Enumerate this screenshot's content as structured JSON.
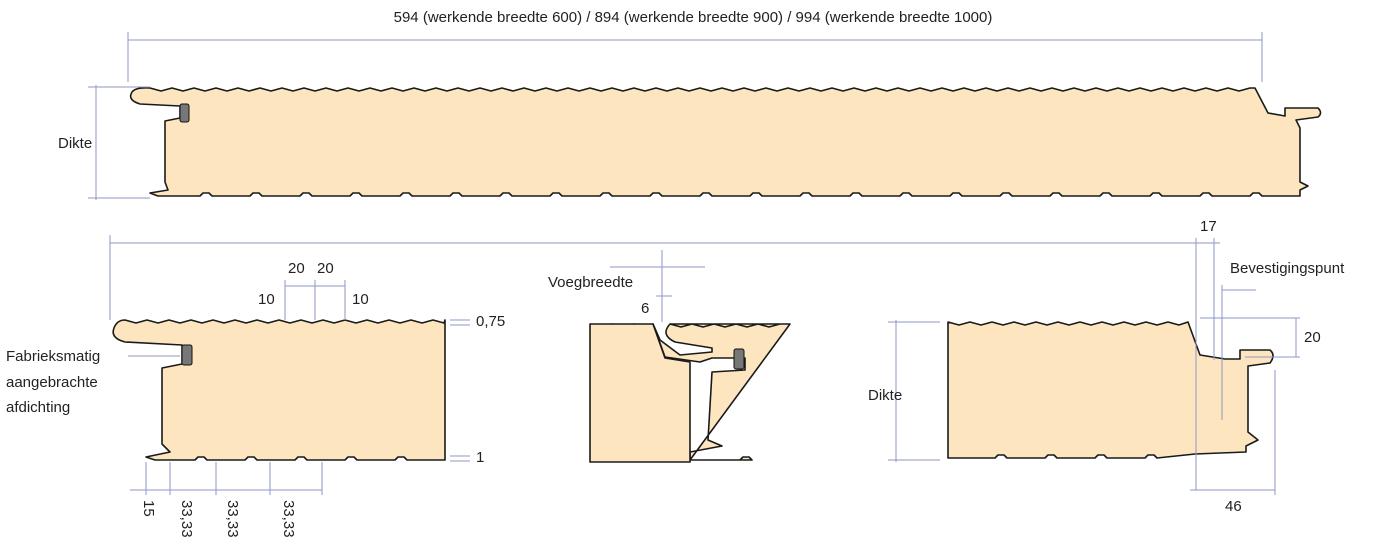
{
  "labels": {
    "width": "594 (werkende breedte 600) / 894 (werkende breedte 900) / 994 (werkende breedte 1000)",
    "thickness_top": "Dikte",
    "rib_a": "20",
    "rib_b": "20",
    "rib_c": "10",
    "rib_d": "10",
    "skin_top": "0,75",
    "seal": [
      "Fabrieksmatig",
      "aangebrachte",
      "afdichting"
    ],
    "skin_bottom": "1",
    "bottom_dims": [
      "15",
      "33,33",
      "33,33",
      "33,33"
    ],
    "joint": "Voegbreedte",
    "joint_value": "6",
    "offset": "17",
    "fixing": "Bevestigingspunt",
    "tongue": "20",
    "thickness_right": "Dikte",
    "overlap": "46"
  }
}
